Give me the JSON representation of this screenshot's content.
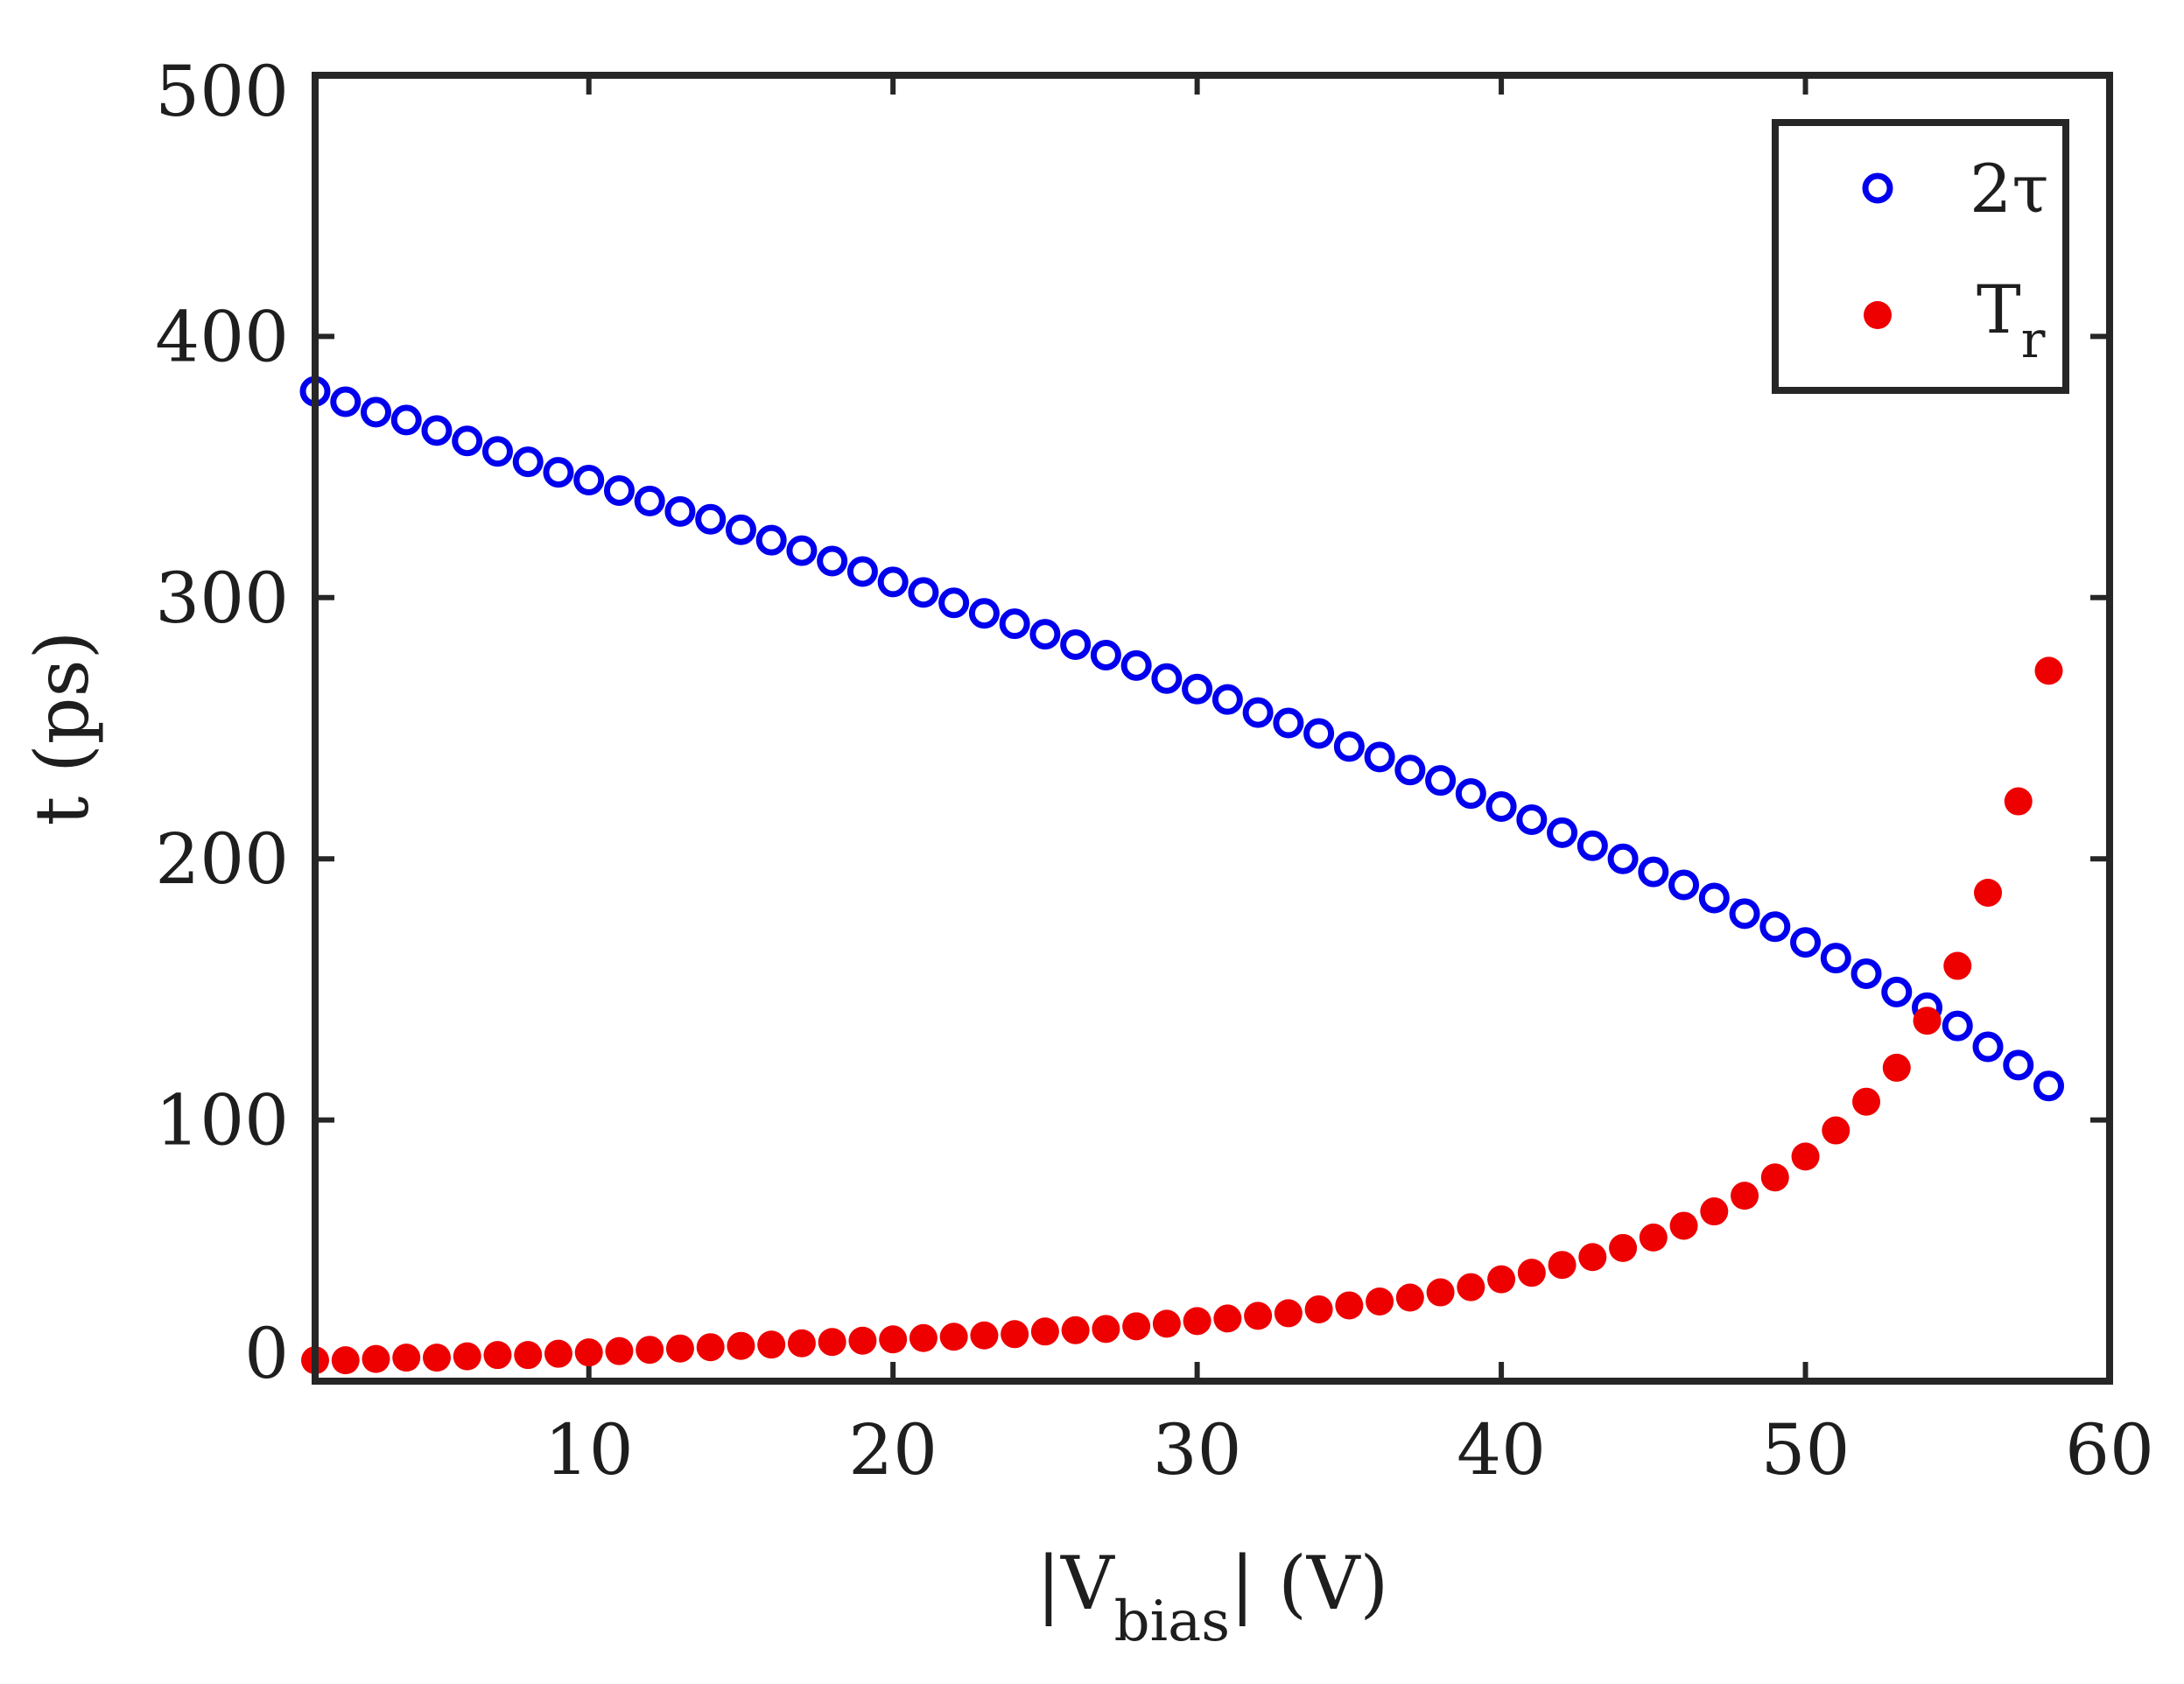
{
  "chart_data": {
    "type": "scatter",
    "title": "",
    "xlabel": {
      "prefix": "|V",
      "subscript": "bias",
      "suffix": "| (V)"
    },
    "ylabel": "t (ps)",
    "xlim": [
      1,
      60
    ],
    "ylim": [
      0,
      500
    ],
    "xticks": [
      10,
      20,
      30,
      40,
      50,
      60
    ],
    "yticks": [
      0,
      100,
      200,
      300,
      400,
      500
    ],
    "legend_position": "top-right",
    "series": [
      {
        "name": "2τ",
        "legend_main": "2τ",
        "legend_sub": "",
        "marker": "open-circle",
        "color": "#0000ee",
        "x": [
          1,
          2,
          3,
          4,
          5,
          6,
          7,
          8,
          9,
          10,
          11,
          12,
          13,
          14,
          15,
          16,
          17,
          18,
          19,
          20,
          21,
          22,
          23,
          24,
          25,
          26,
          27,
          28,
          29,
          30,
          31,
          32,
          33,
          34,
          35,
          36,
          37,
          38,
          39,
          40,
          41,
          42,
          43,
          44,
          45,
          46,
          47,
          48,
          49,
          50,
          51,
          52,
          53,
          54,
          55,
          56,
          57,
          58
        ],
        "y": [
          379,
          375,
          371,
          368,
          364,
          360,
          356,
          352,
          348,
          345,
          341,
          337,
          333,
          330,
          326,
          322,
          318,
          314,
          310,
          306,
          302,
          298,
          294,
          290,
          286,
          282,
          278,
          274,
          269,
          265,
          261,
          256,
          252,
          248,
          243,
          239,
          234,
          230,
          225,
          220,
          215,
          210,
          205,
          200,
          195,
          190,
          185,
          179,
          174,
          168,
          162,
          156,
          149,
          143,
          136,
          128,
          121,
          113
        ]
      },
      {
        "name": "Tr",
        "legend_main": "T",
        "legend_sub": "r",
        "marker": "filled-circle",
        "color": "#ee0000",
        "x": [
          1,
          2,
          3,
          4,
          5,
          6,
          7,
          8,
          9,
          10,
          11,
          12,
          13,
          14,
          15,
          16,
          17,
          18,
          19,
          20,
          21,
          22,
          23,
          24,
          25,
          26,
          27,
          28,
          29,
          30,
          31,
          32,
          33,
          34,
          35,
          36,
          37,
          38,
          39,
          40,
          41,
          42,
          43,
          44,
          45,
          46,
          47,
          48,
          49,
          50,
          51,
          52,
          53,
          54,
          55,
          56,
          57,
          58
        ],
        "y": [
          8,
          8,
          8.5,
          9,
          9,
          9.5,
          10,
          10,
          10.5,
          11,
          11.5,
          12,
          12.5,
          13,
          13.5,
          14,
          14.5,
          15,
          15.5,
          16,
          16.5,
          17,
          17.5,
          18,
          19,
          19.5,
          20,
          21,
          22,
          23,
          24,
          25,
          26,
          27.5,
          29,
          30.5,
          32,
          34,
          36,
          39,
          41.5,
          44.5,
          47.5,
          51,
          55,
          59.5,
          65,
          71,
          78,
          86,
          96,
          107,
          120,
          138,
          159,
          187,
          222,
          272
        ]
      }
    ]
  }
}
